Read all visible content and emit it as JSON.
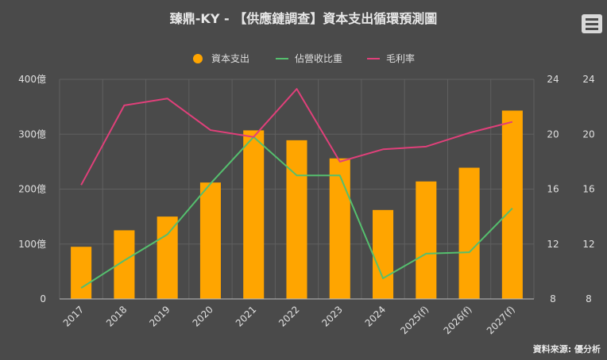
{
  "title": "臻鼎-KY - 【供應鏈調查】資本支出循環預測圖",
  "credit": "資料來源: 優分析",
  "menu_icon": "hamburger-menu-icon",
  "chart_data": {
    "type": "bar",
    "title": "臻鼎-KY - 【供應鏈調查】資本支出循環預測圖",
    "categories": [
      "2017",
      "2018",
      "2019",
      "2020",
      "2021",
      "2022",
      "2023",
      "2024",
      "2025(f)",
      "2026(f)",
      "2027(f)"
    ],
    "series": [
      {
        "name": "資本支出",
        "type": "bar",
        "axis": "left",
        "color": "#ffa500",
        "values": [
          95,
          125,
          150,
          212,
          307,
          289,
          256,
          162,
          214,
          239,
          343
        ]
      },
      {
        "name": "佔營收比重",
        "type": "line",
        "axis": "right",
        "color": "#55bf6e",
        "values": [
          8.8,
          10.8,
          12.7,
          16.4,
          19.8,
          17.0,
          17.0,
          9.5,
          11.3,
          11.4,
          14.6
        ]
      },
      {
        "name": "毛利率",
        "type": "line",
        "axis": "right",
        "color": "#e0407a",
        "values": [
          16.3,
          22.1,
          22.6,
          20.3,
          19.8,
          23.3,
          18.0,
          18.9,
          19.1,
          20.1,
          20.9
        ]
      }
    ],
    "y_left": {
      "ticks": [
        "0",
        "100億",
        "200億",
        "300億",
        "400億"
      ],
      "ylim": [
        0,
        400
      ]
    },
    "y_right": {
      "ticks": [
        "8",
        "12",
        "16",
        "20",
        "24"
      ],
      "ylim": [
        8,
        24
      ]
    },
    "y_right_outer": {
      "ticks": [
        "8",
        "12",
        "16",
        "20",
        "24"
      ]
    },
    "legend": {
      "placement": "top-center",
      "labels": [
        "資本支出",
        "佔營收比重",
        "毛利率"
      ]
    },
    "grid": true,
    "colors": {
      "background": "#4a4a4a",
      "grid": "#606060",
      "text": "#e0e0e0"
    }
  }
}
